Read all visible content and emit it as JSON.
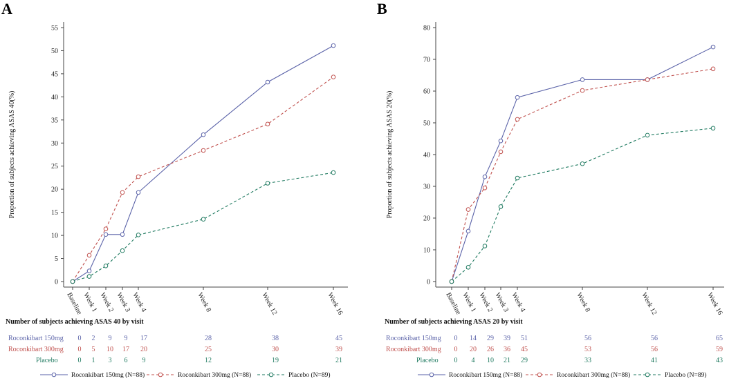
{
  "chart_data": [
    {
      "panel": "A",
      "type": "line",
      "ylabel": "Proportion of subjects achieving ASAS 40(%)",
      "ylim": [
        0,
        55
      ],
      "yticks": [
        0,
        5,
        10,
        15,
        20,
        25,
        30,
        35,
        40,
        45,
        50,
        55
      ],
      "categories": [
        "Baseline",
        "Week 1",
        "Week 2",
        "Week 3",
        "Week 4",
        "Week 8",
        "Week 12",
        "Week 16"
      ],
      "x": [
        0,
        1,
        2,
        3,
        4,
        8,
        12,
        16
      ],
      "series": [
        {
          "name": "Roconkibart 150mg (N=88)",
          "values": [
            0,
            2.3,
            10.2,
            10.2,
            19.3,
            31.8,
            43.2,
            51.1
          ]
        },
        {
          "name": "Roconkibart 300mg (N=88)",
          "values": [
            0,
            5.7,
            11.4,
            19.3,
            22.7,
            28.4,
            34.1,
            44.3
          ]
        },
        {
          "name": "Placebo (N=89)",
          "values": [
            0,
            1.1,
            3.4,
            6.7,
            10.1,
            13.5,
            21.3,
            23.6
          ]
        }
      ],
      "table_title": "Number of subjects achieving ASAS 40 by visit",
      "table_rows": [
        {
          "label": "Roconkibart 150mg",
          "counts": [
            "0",
            "2",
            "9",
            "9",
            "17",
            "28",
            "38",
            "45"
          ]
        },
        {
          "label": "Roconkibart 300mg",
          "counts": [
            "0",
            "5",
            "10",
            "17",
            "20",
            "25",
            "30",
            "39"
          ]
        },
        {
          "label": "Placebo",
          "counts": [
            "0",
            "1",
            "3",
            "6",
            "9",
            "12",
            "19",
            "21"
          ]
        }
      ]
    },
    {
      "panel": "B",
      "type": "line",
      "ylabel": "Proportion of subjects achieving ASAS 20(%)",
      "ylim": [
        0,
        80
      ],
      "yticks": [
        0,
        10,
        20,
        30,
        40,
        50,
        60,
        70,
        80
      ],
      "categories": [
        "Baseline",
        "Week 1",
        "Week 2",
        "Week 3",
        "Week 4",
        "Week 8",
        "Week 12",
        "Week 16"
      ],
      "x": [
        0,
        1,
        2,
        3,
        4,
        8,
        12,
        16
      ],
      "series": [
        {
          "name": "Roconkibart 150mg (N=88)",
          "values": [
            0,
            15.9,
            33.0,
            44.3,
            58.0,
            63.6,
            63.6,
            73.9
          ]
        },
        {
          "name": "Roconkibart 300mg (N=88)",
          "values": [
            0,
            22.7,
            29.5,
            40.9,
            51.1,
            60.2,
            63.6,
            67.0
          ]
        },
        {
          "name": "Placebo (N=89)",
          "values": [
            0,
            4.5,
            11.2,
            23.6,
            32.6,
            37.1,
            46.1,
            48.3
          ]
        }
      ],
      "table_title": "Number of subjects achieving ASAS 20 by visit",
      "table_rows": [
        {
          "label": "Roconkibart 150mg",
          "counts": [
            "0",
            "14",
            "29",
            "39",
            "51",
            "56",
            "56",
            "65"
          ]
        },
        {
          "label": "Roconkibart 300mg",
          "counts": [
            "0",
            "20",
            "26",
            "36",
            "45",
            "53",
            "56",
            "59"
          ]
        },
        {
          "label": "Placebo",
          "counts": [
            "0",
            "4",
            "10",
            "21",
            "29",
            "33",
            "41",
            "43"
          ]
        }
      ]
    }
  ],
  "series_colors": [
    "#5a62a8",
    "#c0504d",
    "#1f7a60"
  ],
  "series_styles": [
    "solid",
    "dashed",
    "dashed"
  ]
}
